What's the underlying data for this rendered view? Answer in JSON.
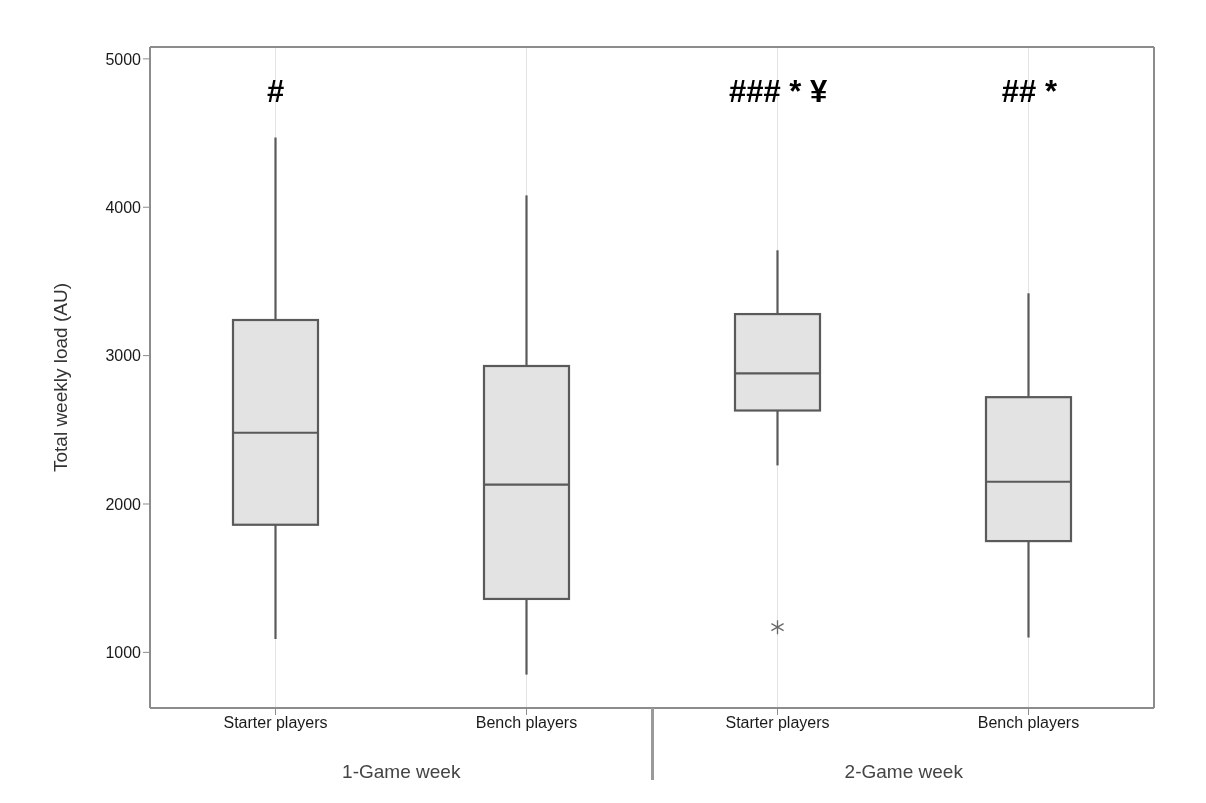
{
  "chart_data": {
    "type": "box",
    "ylabel": "Total weekly load (AU)",
    "categories": [
      "Starter players",
      "Bench players",
      "Starter players",
      "Bench players"
    ],
    "boxes": [
      {
        "low": 1090,
        "q1": 1860,
        "median": 2480,
        "q3": 3240,
        "high": 4470
      },
      {
        "low": 850,
        "q1": 1360,
        "median": 2130,
        "q3": 2930,
        "high": 4080
      },
      {
        "low": 2260,
        "q1": 2630,
        "median": 2880,
        "q3": 3280,
        "high": 3710,
        "outliers": [
          1170
        ]
      },
      {
        "low": 1100,
        "q1": 1750,
        "median": 2150,
        "q3": 2720,
        "high": 3420
      }
    ],
    "color": "#e3e3e3",
    "ylim": [
      625,
      5080
    ],
    "yticks": [
      1000,
      2000,
      3000,
      4000,
      5000
    ],
    "grid": "x",
    "annotations": [
      "#",
      "### * ¥",
      "## *",
      "1-Game week",
      "2-Game week"
    ]
  }
}
